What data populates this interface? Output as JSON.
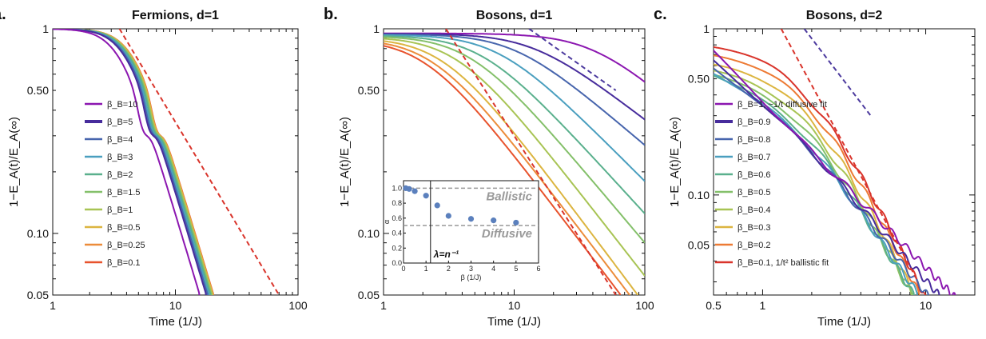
{
  "colors": {
    "c0.1": "#e8532d",
    "c0.2": "#ed7a34",
    "c0.25": "#ec8c3a",
    "c0.3": "#e9a03b",
    "c0.4": "#dcb540",
    "c0.5": "#dcb540",
    "c0.6": "#a8c454",
    "c0.7": "#84c06a",
    "c0.8": "#5ab08d",
    "c0.9": "#4a9fbf",
    "c1": "#a8c454",
    "c1.5": "#84c06a",
    "c2": "#5ab08d",
    "c3": "#4a9fbf",
    "c4": "#4765ad",
    "c5": "#472c9c",
    "c10": "#8b16b0",
    "fit": "#d9342b",
    "fit2": "#4c3a9e",
    "inset_marker": "#5b80bd"
  },
  "chart_data": [
    {
      "type": "line",
      "panel_letter": "a.",
      "title": "Fermions, d=1",
      "xlabel": "Time (1/J)",
      "ylabel": "1−E_A(t)/E_A(∞)",
      "xscale": "log",
      "yscale": "log",
      "xlim": [
        1,
        100
      ],
      "ylim": [
        0.05,
        1
      ],
      "xticks": [
        {
          "v": 1,
          "label": "1"
        },
        {
          "v": 10,
          "label": "10"
        },
        {
          "v": 100,
          "label": "100"
        }
      ],
      "yticks": [
        {
          "v": 1,
          "label": "1"
        },
        {
          "v": 0.5,
          "label": "0.50"
        },
        {
          "v": 0.1,
          "label": "0.10"
        },
        {
          "v": 0.05,
          "label": "0.05"
        }
      ],
      "legend_position": "middle-left",
      "series": [
        {
          "name": "β_B=10",
          "beta": 10,
          "color_key": "c10",
          "width": 2
        },
        {
          "name": "β_B=5",
          "beta": 5,
          "color_key": "c5",
          "width": 3.5
        },
        {
          "name": "β_B=4",
          "beta": 4,
          "color_key": "c4",
          "width": 2
        },
        {
          "name": "β_B=3",
          "beta": 3,
          "color_key": "c3",
          "width": 2
        },
        {
          "name": "β_B=2",
          "beta": 2,
          "color_key": "c2",
          "width": 2
        },
        {
          "name": "β_B=1.5",
          "beta": 1.5,
          "color_key": "c1.5",
          "width": 2
        },
        {
          "name": "β_B=1",
          "beta": 1,
          "color_key": "c1",
          "width": 2
        },
        {
          "name": "β_B=0.5",
          "beta": 0.5,
          "color_key": "c0.5",
          "width": 2
        },
        {
          "name": "β_B=0.25",
          "beta": 0.25,
          "color_key": "c0.25",
          "width": 2
        },
        {
          "name": "β_B=0.1",
          "beta": 0.1,
          "color_key": "c0.1",
          "width": 2
        }
      ],
      "fits": [
        {
          "color_key": "fit",
          "x": [
            3.5,
            70
          ],
          "y": [
            1.0,
            0.05
          ]
        }
      ]
    },
    {
      "type": "line",
      "panel_letter": "b.",
      "title": "Bosons, d=1",
      "xlabel": "Time (1/J)",
      "ylabel": "1−E_A(t)/E_A(∞)",
      "xscale": "log",
      "yscale": "log",
      "xlim": [
        1,
        100
      ],
      "ylim": [
        0.05,
        1
      ],
      "xticks": [
        {
          "v": 1,
          "label": "1"
        },
        {
          "v": 10,
          "label": "10"
        },
        {
          "v": 100,
          "label": "100"
        }
      ],
      "yticks": [
        {
          "v": 1,
          "label": "1"
        },
        {
          "v": 0.5,
          "label": "0.50"
        },
        {
          "v": 0.1,
          "label": "0.10"
        },
        {
          "v": 0.05,
          "label": "0.05"
        }
      ],
      "series": [
        {
          "color_key": "c10",
          "end": 0.55
        },
        {
          "color_key": "c5",
          "end": 0.36
        },
        {
          "color_key": "c4",
          "end": 0.27
        },
        {
          "color_key": "c3",
          "end": 0.18
        },
        {
          "color_key": "c2",
          "end": 0.125
        },
        {
          "color_key": "c1.5",
          "end": 0.09
        },
        {
          "color_key": "c1",
          "end": 0.062
        },
        {
          "color_key": "c0.5",
          "end": 0.045
        },
        {
          "color_key": "c0.25",
          "end": 0.04
        },
        {
          "color_key": "c0.1",
          "end": 0.035
        }
      ],
      "fits": [
        {
          "color_key": "fit",
          "x": [
            3.0,
            60
          ],
          "y": [
            1.0,
            0.05
          ]
        },
        {
          "color_key": "fit2",
          "x": [
            13,
            60
          ],
          "y": [
            1.0,
            0.5
          ]
        }
      ],
      "inset": {
        "type": "scatter",
        "xlabel": "β (1/J)",
        "ylabel": "α",
        "xlim": [
          0,
          6
        ],
        "ylim": [
          0,
          1.1
        ],
        "xticks": [
          0,
          1,
          2,
          3,
          4,
          5,
          6
        ],
        "yticks": [
          {
            "v": 0,
            "label": "0.0"
          },
          {
            "v": 0.2,
            "label": "0.2"
          },
          {
            "v": 0.4,
            "label": "0.4"
          },
          {
            "v": 0.6,
            "label": "0.6"
          },
          {
            "v": 0.8,
            "label": "0.8"
          },
          {
            "v": 1.0,
            "label": "1.0"
          }
        ],
        "x": [
          0.1,
          0.25,
          0.5,
          1.0,
          1.5,
          2.0,
          3.0,
          4.0,
          5.0
        ],
        "y": [
          1.0,
          0.99,
          0.96,
          0.9,
          0.77,
          0.63,
          0.59,
          0.57,
          0.54
        ],
        "ballistic_label": "Ballistic",
        "ballistic_y": 1.0,
        "diffusive_label": "Diffusive",
        "diffusive_y": 0.5,
        "lambda_label": "λ=n⁻¹",
        "lambda_x": 1.2
      }
    },
    {
      "type": "line",
      "panel_letter": "c.",
      "title": "Bosons, d=2",
      "xlabel": "Time (1/J)",
      "ylabel": "1−E_A(t)/E_A(∞)",
      "xscale": "log",
      "yscale": "log",
      "xlim": [
        0.5,
        20
      ],
      "ylim": [
        0.025,
        1
      ],
      "xticks": [
        {
          "v": 0.5,
          "label": "0.5"
        },
        {
          "v": 1,
          "label": "1"
        },
        {
          "v": 10,
          "label": "10"
        }
      ],
      "yticks": [
        {
          "v": 1,
          "label": "1"
        },
        {
          "v": 0.5,
          "label": "0.50"
        },
        {
          "v": 0.1,
          "label": "0.10"
        },
        {
          "v": 0.05,
          "label": "0.05"
        }
      ],
      "legend_position": "middle-left",
      "series": [
        {
          "name": "β_B=1, ~1/t diffusive fit",
          "beta": 1,
          "color_key": "c10",
          "width": 2
        },
        {
          "name": "β_B=0.9",
          "beta": 0.9,
          "color_key": "c5",
          "width": 3.5
        },
        {
          "name": "β_B=0.8",
          "beta": 0.8,
          "color_key": "c4",
          "width": 2
        },
        {
          "name": "β_B=0.7",
          "beta": 0.7,
          "color_key": "c0.9",
          "width": 2
        },
        {
          "name": "β_B=0.6",
          "beta": 0.6,
          "color_key": "c0.8",
          "width": 2
        },
        {
          "name": "β_B=0.5",
          "beta": 0.5,
          "color_key": "c0.7",
          "width": 2
        },
        {
          "name": "β_B=0.4",
          "beta": 0.4,
          "color_key": "c0.6",
          "width": 2
        },
        {
          "name": "β_B=0.3",
          "beta": 0.3,
          "color_key": "c0.4",
          "width": 2
        },
        {
          "name": "β_B=0.2",
          "beta": 0.2,
          "color_key": "c0.2",
          "width": 2
        },
        {
          "name": "β_B=0.1, 1/t² ballistic fit",
          "beta": 0.1,
          "color_key": "fit",
          "width": 2
        }
      ],
      "fits": [
        {
          "color_key": "fit",
          "x": [
            1.3,
            9
          ],
          "y": [
            1.0,
            0.03
          ]
        },
        {
          "color_key": "fit2",
          "x": [
            1.8,
            4.6
          ],
          "y": [
            1.0,
            0.3
          ]
        }
      ]
    }
  ]
}
